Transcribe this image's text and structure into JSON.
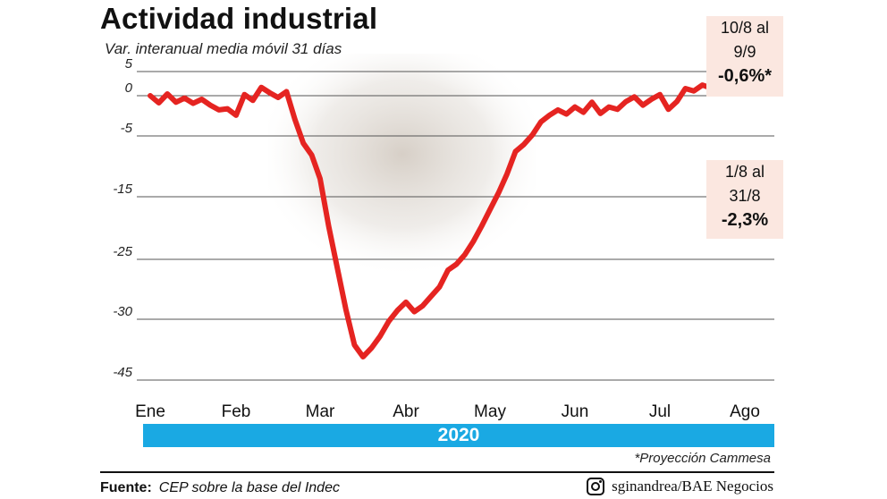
{
  "header": {
    "title": "Actividad industrial",
    "subtitle": "Var. interanual media móvil 31 días"
  },
  "callouts": [
    {
      "period_line1": "10/8 al",
      "period_line2": "9/9",
      "value": "-0,6%*"
    },
    {
      "period_line1": "1/8 al",
      "period_line2": "31/8",
      "value": "-2,3%"
    }
  ],
  "footer": {
    "year": "2020",
    "note": "*Proyección Cammesa",
    "source_label": "Fuente:",
    "source_text": "CEP sobre la base del Indec",
    "credit": "sginandrea/BAE Negocios"
  },
  "colors": {
    "line": "#e52421",
    "year_bar": "#1aa9e3",
    "callout_bg": "#fbe7e0",
    "grid": "#555555"
  },
  "chart_data": {
    "type": "line",
    "title": "Actividad industrial",
    "subtitle": "Var. interanual media móvil 31 días",
    "xlabel": "",
    "ylabel": "",
    "y_tick_labels": [
      "5",
      "0",
      "-5",
      "-15",
      "-25",
      "-30",
      "-45"
    ],
    "x_tick_labels": [
      "Ene",
      "Feb",
      "Mar",
      "Abr",
      "May",
      "Jun",
      "Jul",
      "Ago"
    ],
    "grid": "horizontal",
    "x_unit": "months since start of January 2020",
    "series": [
      {
        "name": "",
        "x": [
          0.0,
          0.1,
          0.2,
          0.3,
          0.4,
          0.5,
          0.6,
          0.7,
          0.8,
          0.9,
          1.0,
          1.1,
          1.2,
          1.3,
          1.4,
          1.5,
          1.6,
          1.7,
          1.8,
          1.9,
          2.0,
          2.1,
          2.2,
          2.3,
          2.4,
          2.5,
          2.6,
          2.7,
          2.8,
          2.9,
          3.0,
          3.1,
          3.2,
          3.3,
          3.4,
          3.5,
          3.6,
          3.7,
          3.8,
          3.9,
          4.0,
          4.1,
          4.2,
          4.3,
          4.4,
          4.5,
          4.6,
          4.7,
          4.8,
          4.9,
          5.0,
          5.1,
          5.2,
          5.3,
          5.4,
          5.5,
          5.6,
          5.7,
          5.8,
          5.9,
          6.0,
          6.1,
          6.2,
          6.3,
          6.4,
          6.5,
          6.6,
          6.7,
          6.8,
          6.9,
          7.0,
          7.1,
          7.2,
          7.3,
          7.4
        ],
        "y": [
          0.0,
          -1.2,
          0.3,
          -1.1,
          -0.4,
          -1.3,
          -0.6,
          -1.6,
          -2.4,
          -2.2,
          -3.3,
          0.2,
          -0.8,
          1.4,
          0.5,
          -0.3,
          0.7,
          -4.0,
          -8.0,
          -10.0,
          -14.0,
          -22.0,
          -29.0,
          -36.0,
          -42.0,
          -44.0,
          -42.5,
          -40.5,
          -38.0,
          -36.2,
          -34.8,
          -36.4,
          -35.4,
          -33.8,
          -32.2,
          -29.4,
          -28.4,
          -26.8,
          -24.6,
          -22.0,
          -19.2,
          -16.4,
          -13.2,
          -9.4,
          -8.2,
          -6.6,
          -4.4,
          -3.3,
          -2.4,
          -3.1,
          -1.9,
          -2.8,
          -1.1,
          -3.0,
          -1.9,
          -2.3,
          -1.0,
          -0.2,
          -1.6,
          -0.6,
          0.2,
          -2.3,
          -1.0,
          1.2,
          0.8,
          1.8,
          1.3,
          2.0,
          1.2,
          1.8,
          1.0,
          0.6,
          1.5,
          0.8,
          1.1
        ]
      }
    ]
  }
}
